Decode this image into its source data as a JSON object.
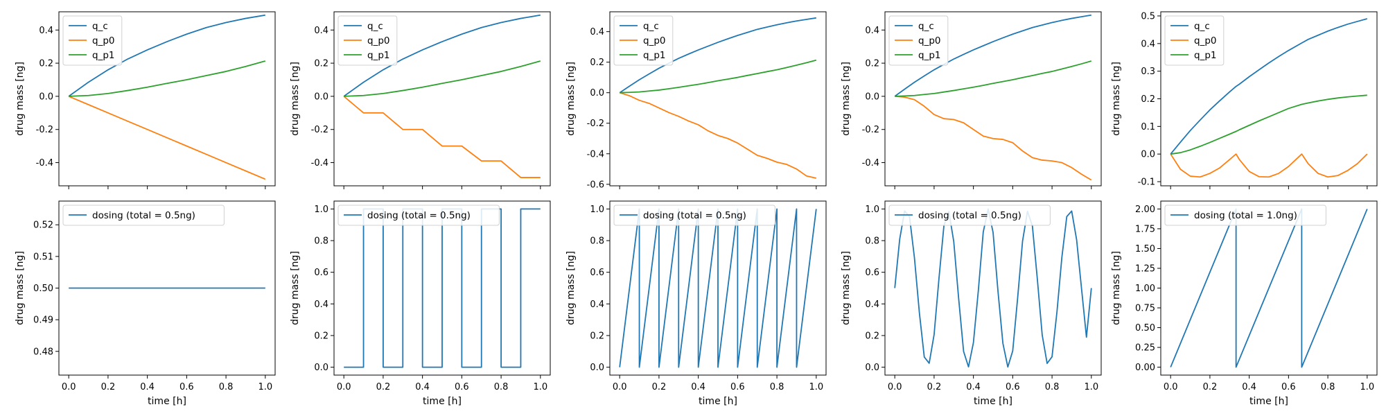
{
  "colors": {
    "q_c": "#1f77b4",
    "q_p0": "#ff7f0e",
    "q_p1": "#2ca02c",
    "dosing": "#1f77b4"
  },
  "chart_data": [
    {
      "type": "line",
      "xlabel": "",
      "ylabel": "drug mass [ng]",
      "xlim": [
        -0.05,
        1.05
      ],
      "ylim": [
        -0.54,
        0.51
      ],
      "yticks": [
        -0.4,
        -0.2,
        0.0,
        0.2,
        0.4
      ],
      "x": [
        0,
        0.1,
        0.2,
        0.3,
        0.4,
        0.5,
        0.6,
        0.7,
        0.8,
        0.9,
        1.0
      ],
      "legend": "top-left",
      "series": [
        {
          "name": "q_c",
          "color": "#1f77b4",
          "values": [
            0,
            0.085,
            0.16,
            0.225,
            0.28,
            0.33,
            0.375,
            0.415,
            0.445,
            0.47,
            0.49
          ]
        },
        {
          "name": "q_p0",
          "color": "#ff7f0e",
          "values": [
            0,
            -0.05,
            -0.1,
            -0.15,
            -0.2,
            -0.25,
            -0.3,
            -0.35,
            -0.4,
            -0.45,
            -0.5
          ]
        },
        {
          "name": "q_p1",
          "color": "#2ca02c",
          "values": [
            0,
            0.005,
            0.017,
            0.035,
            0.055,
            0.078,
            0.1,
            0.125,
            0.15,
            0.18,
            0.213
          ]
        }
      ]
    },
    {
      "type": "line",
      "xlabel": "",
      "ylabel": "drug mass [ng]",
      "xlim": [
        -0.05,
        1.05
      ],
      "ylim": [
        -0.54,
        0.51
      ],
      "yticks": [
        -0.4,
        -0.2,
        0.0,
        0.2,
        0.4
      ],
      "x": [
        0,
        0.1,
        0.2,
        0.3,
        0.4,
        0.5,
        0.6,
        0.7,
        0.8,
        0.9,
        1.0
      ],
      "legend": "top-left",
      "series": [
        {
          "name": "q_c",
          "color": "#1f77b4",
          "values": [
            0,
            0.085,
            0.16,
            0.225,
            0.28,
            0.33,
            0.375,
            0.415,
            0.445,
            0.47,
            0.49
          ]
        },
        {
          "name": "q_p0",
          "color": "#ff7f0e",
          "values": [
            0,
            -0.1,
            -0.1,
            -0.2,
            -0.2,
            -0.3,
            -0.3,
            -0.39,
            -0.39,
            -0.49,
            -0.49
          ]
        },
        {
          "name": "q_p1",
          "color": "#2ca02c",
          "values": [
            0,
            0.005,
            0.017,
            0.035,
            0.055,
            0.078,
            0.1,
            0.125,
            0.15,
            0.18,
            0.213
          ]
        }
      ]
    },
    {
      "type": "line",
      "xlabel": "",
      "ylabel": "drug mass [ng]",
      "xlim": [
        -0.05,
        1.05
      ],
      "ylim": [
        -0.61,
        0.53
      ],
      "yticks": [
        -0.6,
        -0.4,
        -0.2,
        0.0,
        0.2,
        0.4
      ],
      "x": [
        0,
        0.05,
        0.1,
        0.15,
        0.2,
        0.25,
        0.3,
        0.35,
        0.4,
        0.45,
        0.5,
        0.55,
        0.6,
        0.65,
        0.7,
        0.75,
        0.8,
        0.85,
        0.9,
        0.95,
        1.0
      ],
      "legend": "top-left",
      "series": [
        {
          "name": "q_c",
          "color": "#1f77b4",
          "values": [
            0,
            0.043,
            0.085,
            0.123,
            0.16,
            0.193,
            0.225,
            0.253,
            0.28,
            0.305,
            0.33,
            0.353,
            0.375,
            0.395,
            0.415,
            0.43,
            0.445,
            0.458,
            0.47,
            0.48,
            0.49
          ]
        },
        {
          "name": "q_p0",
          "color": "#ff7f0e",
          "values": [
            0,
            -0.02,
            -0.05,
            -0.07,
            -0.1,
            -0.13,
            -0.155,
            -0.185,
            -0.21,
            -0.25,
            -0.28,
            -0.3,
            -0.33,
            -0.37,
            -0.41,
            -0.43,
            -0.455,
            -0.47,
            -0.5,
            -0.545,
            -0.56
          ]
        },
        {
          "name": "q_p1",
          "color": "#2ca02c",
          "values": [
            0,
            0.002,
            0.005,
            0.011,
            0.017,
            0.026,
            0.035,
            0.045,
            0.055,
            0.066,
            0.078,
            0.089,
            0.1,
            0.113,
            0.125,
            0.138,
            0.15,
            0.165,
            0.18,
            0.196,
            0.213
          ]
        }
      ]
    },
    {
      "type": "line",
      "xlabel": "",
      "ylabel": "drug mass [ng]",
      "xlim": [
        -0.05,
        1.05
      ],
      "ylim": [
        -0.54,
        0.51
      ],
      "yticks": [
        -0.4,
        -0.2,
        0.0,
        0.2,
        0.4
      ],
      "x": [
        0,
        0.05,
        0.1,
        0.15,
        0.2,
        0.25,
        0.3,
        0.35,
        0.4,
        0.45,
        0.5,
        0.55,
        0.6,
        0.65,
        0.7,
        0.75,
        0.8,
        0.85,
        0.9,
        0.95,
        1.0
      ],
      "legend": "top-left",
      "series": [
        {
          "name": "q_c",
          "color": "#1f77b4",
          "values": [
            0,
            0.043,
            0.085,
            0.123,
            0.16,
            0.193,
            0.225,
            0.253,
            0.28,
            0.305,
            0.33,
            0.353,
            0.375,
            0.395,
            0.415,
            0.43,
            0.445,
            0.458,
            0.47,
            0.48,
            0.49
          ]
        },
        {
          "name": "q_p0",
          "color": "#ff7f0e",
          "values": [
            0,
            -0.005,
            -0.02,
            -0.06,
            -0.11,
            -0.135,
            -0.14,
            -0.16,
            -0.2,
            -0.24,
            -0.255,
            -0.26,
            -0.28,
            -0.33,
            -0.37,
            -0.385,
            -0.39,
            -0.4,
            -0.43,
            -0.47,
            -0.505
          ]
        },
        {
          "name": "q_p1",
          "color": "#2ca02c",
          "values": [
            0,
            0.002,
            0.005,
            0.011,
            0.017,
            0.026,
            0.035,
            0.045,
            0.055,
            0.066,
            0.078,
            0.089,
            0.1,
            0.113,
            0.125,
            0.138,
            0.15,
            0.165,
            0.18,
            0.196,
            0.213
          ]
        }
      ]
    },
    {
      "type": "line",
      "xlabel": "",
      "ylabel": "drug mass [ng]",
      "xlim": [
        -0.05,
        1.05
      ],
      "ylim": [
        -0.115,
        0.515
      ],
      "yticks": [
        -0.1,
        0.0,
        0.1,
        0.2,
        0.3,
        0.4,
        0.5
      ],
      "x": [
        0,
        0.05,
        0.1,
        0.15,
        0.2,
        0.25,
        0.3,
        0.333,
        0.35,
        0.4,
        0.45,
        0.5,
        0.55,
        0.6,
        0.667,
        0.7,
        0.75,
        0.8,
        0.85,
        0.9,
        0.95,
        1.0
      ],
      "legend": "top-left",
      "series": [
        {
          "name": "q_c",
          "color": "#1f77b4",
          "values": [
            0,
            0.043,
            0.085,
            0.123,
            0.16,
            0.193,
            0.225,
            0.245,
            0.253,
            0.28,
            0.305,
            0.33,
            0.353,
            0.375,
            0.402,
            0.415,
            0.43,
            0.445,
            0.458,
            0.47,
            0.48,
            0.49
          ]
        },
        {
          "name": "q_p0",
          "color": "#ff7f0e",
          "values": [
            0,
            -0.055,
            -0.08,
            -0.083,
            -0.07,
            -0.05,
            -0.02,
            0,
            -0.02,
            -0.063,
            -0.082,
            -0.083,
            -0.07,
            -0.045,
            0,
            -0.035,
            -0.07,
            -0.083,
            -0.078,
            -0.06,
            -0.035,
            0
          ]
        },
        {
          "name": "q_p1",
          "color": "#2ca02c",
          "values": [
            0,
            0.005,
            0.015,
            0.028,
            0.042,
            0.057,
            0.072,
            0.082,
            0.088,
            0.104,
            0.12,
            0.135,
            0.15,
            0.165,
            0.18,
            0.185,
            0.192,
            0.198,
            0.203,
            0.207,
            0.21,
            0.213
          ]
        }
      ]
    },
    {
      "type": "line",
      "xlabel": "time [h]",
      "ylabel": "drug mass [ng]",
      "xlim": [
        -0.05,
        1.05
      ],
      "ylim": [
        0.4725,
        0.5275
      ],
      "yticks": [
        0.48,
        0.49,
        0.5,
        0.51,
        0.52
      ],
      "xticks": [
        0.0,
        0.2,
        0.4,
        0.6,
        0.8,
        1.0
      ],
      "x": [
        0,
        1.0
      ],
      "legend": "top-left",
      "series": [
        {
          "name": "dosing (total = 0.5ng)",
          "color": "#1f77b4",
          "values": [
            0.5,
            0.5
          ]
        }
      ]
    },
    {
      "type": "line",
      "xlabel": "time [h]",
      "ylabel": "drug mass [ng]",
      "xlim": [
        -0.05,
        1.05
      ],
      "ylim": [
        -0.05,
        1.05
      ],
      "yticks": [
        0.0,
        0.2,
        0.4,
        0.6,
        0.8,
        1.0
      ],
      "xticks": [
        0.0,
        0.2,
        0.4,
        0.6,
        0.8,
        1.0
      ],
      "x": [
        0,
        0.1,
        0.1,
        0.2,
        0.2,
        0.3,
        0.3,
        0.4,
        0.4,
        0.5,
        0.5,
        0.6,
        0.6,
        0.7,
        0.7,
        0.8,
        0.8,
        0.9,
        0.9,
        1.0
      ],
      "legend": "top-left",
      "series": [
        {
          "name": "dosing (total = 0.5ng)",
          "color": "#1f77b4",
          "values": [
            0,
            0,
            1,
            1,
            0,
            0,
            1,
            1,
            0,
            0,
            1,
            1,
            0,
            0,
            1,
            1,
            0,
            0,
            1,
            1
          ]
        }
      ]
    },
    {
      "type": "line",
      "xlabel": "time [h]",
      "ylabel": "drug mass [ng]",
      "xlim": [
        -0.05,
        1.05
      ],
      "ylim": [
        -0.05,
        1.05
      ],
      "yticks": [
        0.0,
        0.2,
        0.4,
        0.6,
        0.8,
        1.0
      ],
      "xticks": [
        0.0,
        0.2,
        0.4,
        0.6,
        0.8,
        1.0
      ],
      "x": [
        0,
        0.1,
        0.1,
        0.2,
        0.2,
        0.3,
        0.3,
        0.4,
        0.4,
        0.5,
        0.5,
        0.6,
        0.6,
        0.7,
        0.7,
        0.8,
        0.8,
        0.9,
        0.9,
        1.0
      ],
      "legend": "top-left",
      "series": [
        {
          "name": "dosing (total = 0.5ng)",
          "color": "#1f77b4",
          "values": [
            0,
            1,
            0,
            1,
            0,
            1,
            0,
            1,
            0,
            1,
            0,
            1,
            0,
            1,
            0,
            1,
            0,
            1,
            0,
            1
          ]
        }
      ]
    },
    {
      "type": "line",
      "xlabel": "time [h]",
      "ylabel": "drug mass [ng]",
      "xlim": [
        -0.05,
        1.05
      ],
      "ylim": [
        -0.05,
        1.05
      ],
      "yticks": [
        0.0,
        0.2,
        0.4,
        0.6,
        0.8,
        1.0
      ],
      "xticks": [
        0.0,
        0.2,
        0.4,
        0.6,
        0.8,
        1.0
      ],
      "x": [
        0,
        0.025,
        0.05,
        0.075,
        0.1,
        0.125,
        0.15,
        0.175,
        0.2,
        0.225,
        0.25,
        0.275,
        0.3,
        0.325,
        0.35,
        0.375,
        0.4,
        0.425,
        0.45,
        0.475,
        0.5,
        0.525,
        0.55,
        0.575,
        0.6,
        0.625,
        0.65,
        0.675,
        0.7,
        0.725,
        0.75,
        0.775,
        0.8,
        0.825,
        0.85,
        0.875,
        0.9,
        0.925,
        0.95,
        0.975,
        1.0
      ],
      "legend": "top-left",
      "series": [
        {
          "name": "dosing (total = 0.5ng)",
          "color": "#1f77b4",
          "values": [
            0.5,
            0.809,
            0.988,
            0.951,
            0.691,
            0.345,
            0.064,
            0.025,
            0.206,
            0.564,
            0.895,
            0.984,
            0.794,
            0.433,
            0.1,
            0.002,
            0.155,
            0.484,
            0.854,
            1.0,
            0.852,
            0.48,
            0.151,
            0.001,
            0.103,
            0.437,
            0.797,
            0.985,
            0.893,
            0.56,
            0.203,
            0.024,
            0.066,
            0.349,
            0.694,
            0.952,
            0.987,
            0.806,
            0.497,
            0.19,
            0.5
          ]
        }
      ]
    },
    {
      "type": "line",
      "xlabel": "time [h]",
      "ylabel": "drug mass [ng]",
      "xlim": [
        -0.05,
        1.05
      ],
      "ylim": [
        -0.1,
        2.1
      ],
      "yticks": [
        0.0,
        0.25,
        0.5,
        0.75,
        1.0,
        1.25,
        1.5,
        1.75,
        2.0
      ],
      "xticks": [
        0.0,
        0.2,
        0.4,
        0.6,
        0.8,
        1.0
      ],
      "x": [
        0,
        0.333,
        0.333,
        0.667,
        0.667,
        1.0
      ],
      "legend": "top-left",
      "series": [
        {
          "name": "dosing (total = 1.0ng)",
          "color": "#1f77b4",
          "values": [
            0,
            2,
            0,
            2,
            0,
            2
          ]
        }
      ]
    }
  ]
}
